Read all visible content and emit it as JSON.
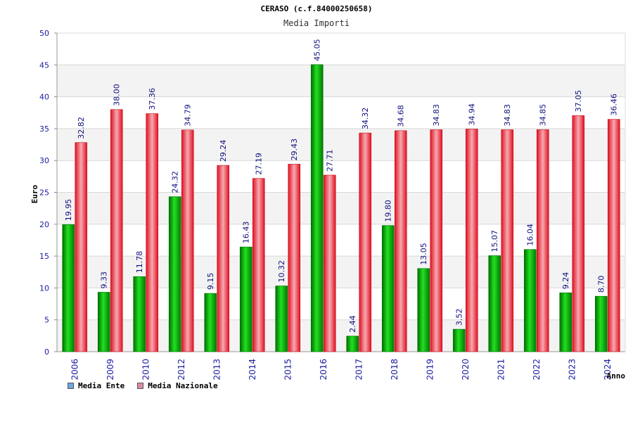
{
  "chart_data": {
    "type": "bar",
    "title": "CERASO (c.f.84000250658)",
    "subtitle": "Media Importi",
    "ylabel": "Euro",
    "xlabel": "Anno",
    "ylim": [
      0,
      50
    ],
    "yticks": [
      0,
      5,
      10,
      15,
      20,
      25,
      30,
      35,
      40,
      45,
      50
    ],
    "grid": true,
    "legend_position": "bottom-left",
    "categories": [
      "2006",
      "2009",
      "2010",
      "2012",
      "2013",
      "2014",
      "2015",
      "2016",
      "2017",
      "2018",
      "2019",
      "2020",
      "2021",
      "2022",
      "2023",
      "2024"
    ],
    "series": [
      {
        "name": "Media Ente",
        "color": "#00aa00",
        "legend_color": "#6fa8dc",
        "values": [
          19.95,
          9.33,
          11.78,
          24.32,
          9.15,
          16.43,
          10.32,
          45.05,
          2.44,
          19.8,
          13.05,
          3.52,
          15.07,
          16.04,
          9.24,
          8.7
        ],
        "labels": [
          "19.95",
          "9.33",
          "11.78",
          "24.32",
          "9.15",
          "16.43",
          "10.32",
          "45.05",
          "2.44",
          "19.80",
          "13.05",
          "3.52",
          "15.07",
          "16.04",
          "9.24",
          "8.70"
        ]
      },
      {
        "name": "Media Nazionale",
        "color": "#e8202a",
        "legend_color": "#d88aa8",
        "values": [
          32.82,
          38.0,
          37.36,
          34.79,
          29.24,
          27.19,
          29.43,
          27.71,
          34.32,
          34.68,
          34.83,
          34.94,
          34.83,
          34.85,
          37.05,
          36.46
        ],
        "labels": [
          "32.82",
          "38.00",
          "37.36",
          "34.79",
          "29.24",
          "27.19",
          "29.43",
          "27.71",
          "34.32",
          "34.68",
          "34.83",
          "34.94",
          "34.83",
          "34.85",
          "37.05",
          "36.46"
        ]
      }
    ]
  }
}
